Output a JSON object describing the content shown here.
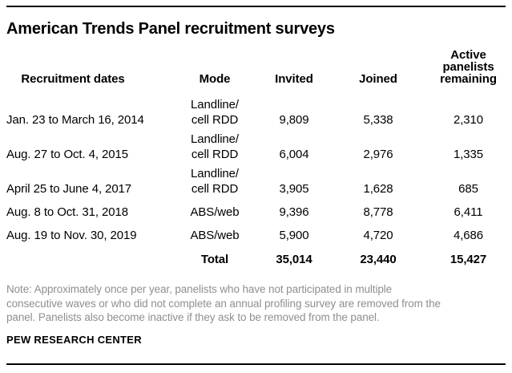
{
  "title": "American Trends Panel recruitment surveys",
  "colors": {
    "text": "#000000",
    "note_gray": "#8f8f8f",
    "rule": "#000000"
  },
  "table": {
    "headers": {
      "dates": "Recruitment dates",
      "mode": "Mode",
      "invited": "Invited",
      "joined": "Joined",
      "active": "Active\npanelists\nremaining"
    },
    "rows": [
      {
        "dates": "Jan. 23 to March 16, 2014",
        "mode": "Landline/\ncell RDD",
        "invited": "9,809",
        "joined": "5,338",
        "active": "2,310"
      },
      {
        "dates": "Aug. 27 to Oct. 4, 2015",
        "mode": "Landline/\ncell RDD",
        "invited": "6,004",
        "joined": "2,976",
        "active": "1,335"
      },
      {
        "dates": "April 25 to June 4, 2017",
        "mode": "Landline/\ncell RDD",
        "invited": "3,905",
        "joined": "1,628",
        "active": "685"
      },
      {
        "dates": "Aug. 8 to Oct. 31, 2018",
        "mode": "ABS/web",
        "invited": "9,396",
        "joined": "8,778",
        "active": "6,411"
      },
      {
        "dates": "Aug. 19 to Nov. 30, 2019",
        "mode": "ABS/web",
        "invited": "5,900",
        "joined": "4,720",
        "active": "4,686"
      }
    ],
    "total_row": {
      "label": "Total",
      "invited": "35,014",
      "joined": "23,440",
      "active": "15,427"
    }
  },
  "note": {
    "lines": [
      "Note: Approximately once per year, panelists who have not participated in multiple",
      "consecutive waves or who did not complete an annual profiling survey are removed from the",
      "panel. Panelists also become inactive if they ask to be removed from the panel."
    ]
  },
  "source": "PEW RESEARCH CENTER",
  "chart_data": {
    "type": "table",
    "title": "American Trends Panel recruitment surveys",
    "columns": [
      "Recruitment dates",
      "Mode",
      "Invited",
      "Joined",
      "Active panelists remaining"
    ],
    "rows": [
      [
        "Jan. 23 to March 16, 2014",
        "Landline/cell RDD",
        9809,
        5338,
        2310
      ],
      [
        "Aug. 27 to Oct. 4, 2015",
        "Landline/cell RDD",
        6004,
        2976,
        1335
      ],
      [
        "April 25 to June 4, 2017",
        "Landline/cell RDD",
        3905,
        1628,
        685
      ],
      [
        "Aug. 8 to Oct. 31, 2018",
        "ABS/web",
        9396,
        8778,
        6411
      ],
      [
        "Aug. 19 to Nov. 30, 2019",
        "ABS/web",
        5900,
        4720,
        4686
      ],
      [
        "Total",
        "",
        35014,
        23440,
        15427
      ]
    ],
    "note": "Approximately once per year, panelists who have not participated in multiple consecutive waves or who did not complete an annual profiling survey are removed from the panel. Panelists also become inactive if they ask to be removed from the panel.",
    "source": "PEW RESEARCH CENTER"
  }
}
